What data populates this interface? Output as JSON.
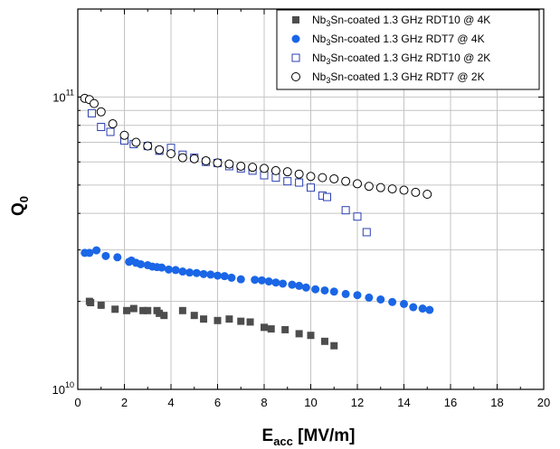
{
  "chart_data": {
    "type": "scatter",
    "xlabel": {
      "main": "E",
      "sub": "acc",
      "rest": " [MV/m]"
    },
    "ylabel": {
      "main": "Q",
      "sub": "0"
    },
    "xlim": [
      0,
      20
    ],
    "ylim": [
      10000000000.0,
      200000000000.0
    ],
    "yscale": "log",
    "xticks": [
      "0",
      "2",
      "4",
      "6",
      "8",
      "10",
      "12",
      "14",
      "16",
      "18",
      "20"
    ],
    "yticks": [
      {
        "base": "10",
        "exp": "10",
        "value": 10000000000.0
      },
      {
        "base": "10",
        "exp": "11",
        "value": 100000000000.0
      }
    ],
    "grid": true,
    "legend_position": "top-right",
    "series": [
      {
        "name": {
          "pre": "Nb",
          "sub": "3",
          "post": "Sn-coated 1.3 GHz RDT10 @ 4K"
        },
        "marker": "square-filled",
        "color": "#4d4d4d",
        "points": [
          [
            0.5,
            20000000000.0
          ],
          [
            0.55,
            19800000000.0
          ],
          [
            1.0,
            19400000000.0
          ],
          [
            1.6,
            18800000000.0
          ],
          [
            2.1,
            18600000000.0
          ],
          [
            2.4,
            18900000000.0
          ],
          [
            2.8,
            18600000000.0
          ],
          [
            3.0,
            18600000000.0
          ],
          [
            3.4,
            18600000000.0
          ],
          [
            3.5,
            18200000000.0
          ],
          [
            3.7,
            17900000000.0
          ],
          [
            4.5,
            18600000000.0
          ],
          [
            5.0,
            17900000000.0
          ],
          [
            5.4,
            17400000000.0
          ],
          [
            6.0,
            17200000000.0
          ],
          [
            6.5,
            17400000000.0
          ],
          [
            7.0,
            17100000000.0
          ],
          [
            7.4,
            17000000000.0
          ],
          [
            8.0,
            16300000000.0
          ],
          [
            8.3,
            16100000000.0
          ],
          [
            8.9,
            16000000000.0
          ],
          [
            9.5,
            15500000000.0
          ],
          [
            10.0,
            15300000000.0
          ],
          [
            10.6,
            14600000000.0
          ],
          [
            11.0,
            14100000000.0
          ]
        ]
      },
      {
        "name": {
          "pre": "Nb",
          "sub": "3",
          "post": "Sn-coated 1.3 GHz RDT7 @ 4K"
        },
        "marker": "circle-filled",
        "color": "#1a66e6",
        "points": [
          [
            0.3,
            29300000000.0
          ],
          [
            0.5,
            29300000000.0
          ],
          [
            0.8,
            29900000000.0
          ],
          [
            1.2,
            28600000000.0
          ],
          [
            1.7,
            28300000000.0
          ],
          [
            2.2,
            27300000000.0
          ],
          [
            2.3,
            27600000000.0
          ],
          [
            2.5,
            27100000000.0
          ],
          [
            2.7,
            26800000000.0
          ],
          [
            3.0,
            26600000000.0
          ],
          [
            3.2,
            26300000000.0
          ],
          [
            3.4,
            26200000000.0
          ],
          [
            3.6,
            26100000000.0
          ],
          [
            3.9,
            25700000000.0
          ],
          [
            4.2,
            25600000000.0
          ],
          [
            4.5,
            25300000000.0
          ],
          [
            4.8,
            25100000000.0
          ],
          [
            5.1,
            25000000000.0
          ],
          [
            5.4,
            24800000000.0
          ],
          [
            5.7,
            24700000000.0
          ],
          [
            6.0,
            24500000000.0
          ],
          [
            6.3,
            24400000000.0
          ],
          [
            6.6,
            24100000000.0
          ],
          [
            7.0,
            23800000000.0
          ],
          [
            7.6,
            23700000000.0
          ],
          [
            7.9,
            23600000000.0
          ],
          [
            8.2,
            23400000000.0
          ],
          [
            8.5,
            23200000000.0
          ],
          [
            8.8,
            23000000000.0
          ],
          [
            9.2,
            22800000000.0
          ],
          [
            9.5,
            22600000000.0
          ],
          [
            9.8,
            22300000000.0
          ],
          [
            10.2,
            22000000000.0
          ],
          [
            10.6,
            21800000000.0
          ],
          [
            11.0,
            21600000000.0
          ],
          [
            11.5,
            21200000000.0
          ],
          [
            12.0,
            21000000000.0
          ],
          [
            12.5,
            20600000000.0
          ],
          [
            13.0,
            20300000000.0
          ],
          [
            13.5,
            19900000000.0
          ],
          [
            14.0,
            19600000000.0
          ],
          [
            14.4,
            19100000000.0
          ],
          [
            14.8,
            18900000000.0
          ],
          [
            15.1,
            18700000000.0
          ]
        ]
      },
      {
        "name": {
          "pre": "Nb",
          "sub": "3",
          "post": "Sn-coated 1.3 GHz RDT10 @ 2K"
        },
        "marker": "square-open",
        "color": "#2a3fb0",
        "points": [
          [
            0.6,
            88000000000.0
          ],
          [
            1.0,
            79000000000.0
          ],
          [
            1.4,
            76000000000.0
          ],
          [
            2.0,
            71000000000.0
          ],
          [
            2.4,
            69000000000.0
          ],
          [
            3.0,
            68000000000.0
          ],
          [
            3.5,
            65500000000.0
          ],
          [
            4.0,
            67000000000.0
          ],
          [
            4.5,
            63500000000.0
          ],
          [
            5.0,
            62000000000.0
          ],
          [
            5.5,
            60000000000.0
          ],
          [
            6.0,
            59500000000.0
          ],
          [
            6.5,
            58000000000.0
          ],
          [
            7.0,
            57000000000.0
          ],
          [
            7.5,
            56000000000.0
          ],
          [
            8.0,
            54000000000.0
          ],
          [
            8.5,
            53000000000.0
          ],
          [
            9.0,
            51500000000.0
          ],
          [
            9.5,
            51000000000.0
          ],
          [
            10.0,
            49000000000.0
          ],
          [
            10.5,
            46000000000.0
          ],
          [
            10.7,
            45500000000.0
          ],
          [
            11.5,
            41000000000.0
          ],
          [
            12.0,
            39000000000.0
          ],
          [
            12.4,
            34500000000.0
          ]
        ]
      },
      {
        "name": {
          "pre": "Nb",
          "sub": "3",
          "post": "Sn-coated 1.3 GHz RDT7 @ 2K"
        },
        "marker": "circle-open",
        "color": "#000000",
        "points": [
          [
            0.3,
            99000000000.0
          ],
          [
            0.5,
            98000000000.0
          ],
          [
            0.7,
            95000000000.0
          ],
          [
            1.0,
            89000000000.0
          ],
          [
            1.5,
            81000000000.0
          ],
          [
            2.0,
            74000000000.0
          ],
          [
            2.5,
            70000000000.0
          ],
          [
            3.0,
            68000000000.0
          ],
          [
            3.5,
            66000000000.0
          ],
          [
            4.0,
            64000000000.0
          ],
          [
            4.5,
            62000000000.0
          ],
          [
            5.0,
            61500000000.0
          ],
          [
            5.5,
            60500000000.0
          ],
          [
            6.0,
            59500000000.0
          ],
          [
            6.5,
            59000000000.0
          ],
          [
            7.0,
            58000000000.0
          ],
          [
            7.5,
            57500000000.0
          ],
          [
            8.0,
            57000000000.0
          ],
          [
            8.5,
            56000000000.0
          ],
          [
            9.0,
            55500000000.0
          ],
          [
            9.5,
            54500000000.0
          ],
          [
            10.0,
            53500000000.0
          ],
          [
            10.5,
            53000000000.0
          ],
          [
            11.0,
            52500000000.0
          ],
          [
            11.5,
            51500000000.0
          ],
          [
            12.0,
            50500000000.0
          ],
          [
            12.5,
            49500000000.0
          ],
          [
            13.0,
            49000000000.0
          ],
          [
            13.5,
            48500000000.0
          ],
          [
            14.0,
            48000000000.0
          ],
          [
            14.5,
            47200000000.0
          ],
          [
            15.0,
            46500000000.0
          ]
        ]
      }
    ]
  }
}
